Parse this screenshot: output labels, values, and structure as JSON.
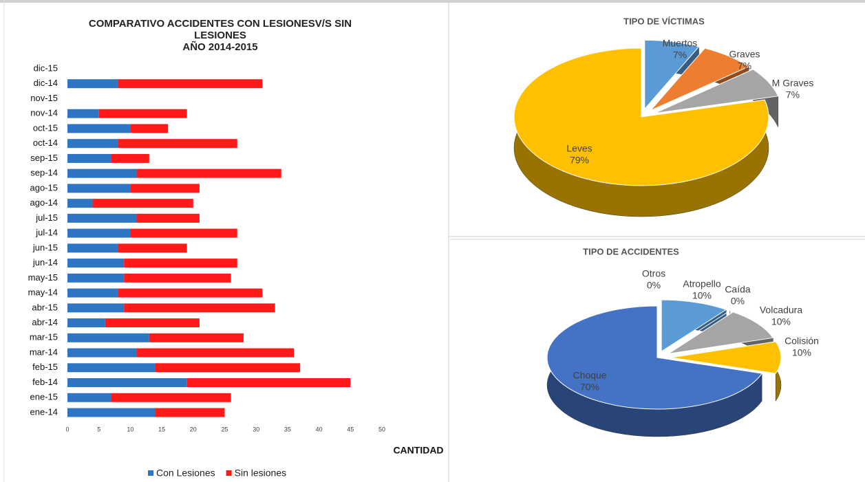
{
  "chart_data": [
    {
      "type": "stacked-barh",
      "title": "COMPARATIVO ACCIDENTES CON LESIONESV/S SIN LESIONES",
      "subtitle": "AÑO 2014-2015",
      "x_label": "CANTIDAD",
      "categories": [
        "ene-14",
        "ene-15",
        "feb-14",
        "feb-15",
        "mar-14",
        "mar-15",
        "abr-14",
        "abr-15",
        "may-14",
        "may-15",
        "jun-14",
        "jun-15",
        "jul-14",
        "jul-15",
        "ago-14",
        "ago-15",
        "sep-14",
        "sep-15",
        "oct-14",
        "oct-15",
        "nov-14",
        "nov-15",
        "dic-14",
        "dic-15"
      ],
      "series": [
        {
          "name": "Con Lesiones",
          "color": "#2e75c4",
          "values": [
            14,
            7,
            19,
            14,
            11,
            13,
            6,
            9,
            8,
            9,
            9,
            8,
            10,
            11,
            4,
            10,
            11,
            7,
            8,
            10,
            5,
            0,
            8,
            0
          ]
        },
        {
          "name": "Sin lesiones",
          "color": "#ff1a1a",
          "values": [
            11,
            19,
            26,
            23,
            25,
            15,
            15,
            24,
            23,
            17,
            18,
            11,
            17,
            10,
            16,
            11,
            23,
            6,
            19,
            6,
            14,
            0,
            23,
            0
          ]
        }
      ],
      "xlim": [
        0,
        50
      ],
      "xticks": [
        0,
        5,
        10,
        15,
        20,
        25,
        30,
        35,
        40,
        45,
        50
      ],
      "grid": false,
      "legend": "bottom"
    },
    {
      "type": "pie3d",
      "title": "TIPO DE VÍCTIMAS",
      "categories": [
        "Muertos",
        "Graves",
        "M Graves",
        "Leves"
      ],
      "values": [
        7,
        7,
        7,
        79
      ],
      "value_labels": [
        "7%",
        "7%",
        "7%",
        "79%"
      ],
      "colors": [
        "#5b9bd5",
        "#ed7d31",
        "#a5a5a5",
        "#ffc000"
      ]
    },
    {
      "type": "pie3d",
      "title": "TIPO DE ACCIDENTES",
      "categories": [
        "Otros",
        "Atropello",
        "Caída",
        "Volcadura",
        "Colisión",
        "Choque"
      ],
      "values": [
        0,
        10,
        0,
        10,
        10,
        70
      ],
      "value_labels": [
        "0%",
        "10%",
        "0%",
        "10%",
        "10%",
        "70%"
      ],
      "colors": [
        "#ffffff",
        "#5b9bd5",
        "#ed7d31",
        "#a5a5a5",
        "#ffc000",
        "#4472c4"
      ]
    }
  ]
}
